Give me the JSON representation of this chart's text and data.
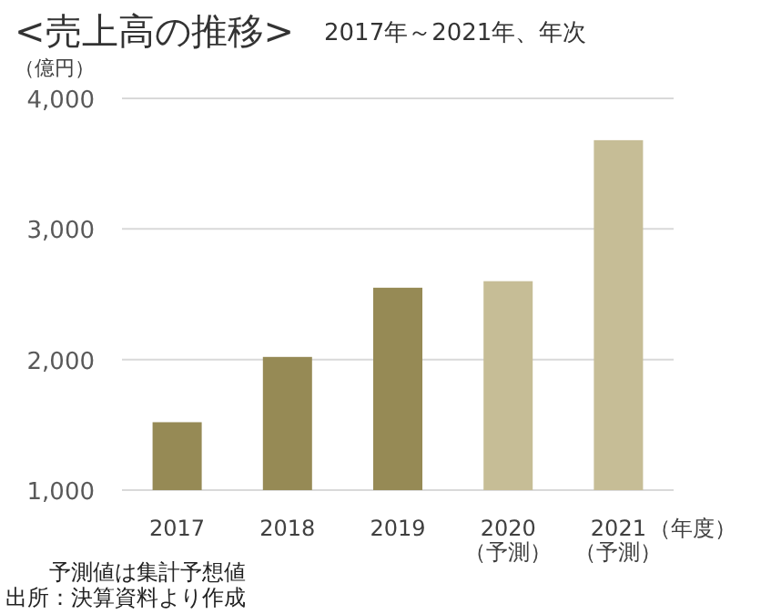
{
  "chart_data": {
    "type": "bar",
    "title": "<売上高の推移>",
    "subtitle": "2017年～2021年、年次",
    "ylabel": "（億円）",
    "xlabel": "（年度）",
    "categories": [
      "2017",
      "2018",
      "2019",
      "2020\n（予測）",
      "2021\n（予測）"
    ],
    "values": [
      1520,
      2020,
      2550,
      2600,
      3680
    ],
    "colors": [
      "#968a55",
      "#968a55",
      "#968a55",
      "#c6bd96",
      "#c6bd96"
    ],
    "ylim": [
      1000,
      4000
    ],
    "yticks": [
      {
        "value": 1000,
        "label": "1,000"
      },
      {
        "value": 2000,
        "label": "2,000"
      },
      {
        "value": 3000,
        "label": "3,000"
      },
      {
        "value": 4000,
        "label": "4,000"
      }
    ],
    "grid": "y",
    "annotations": [
      "予測値は集計予想値",
      "出所：決算資料より作成"
    ]
  }
}
